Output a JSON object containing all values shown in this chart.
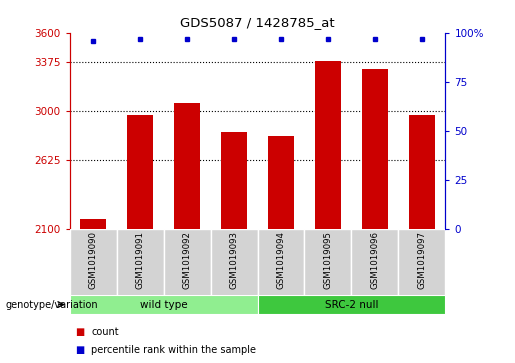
{
  "title": "GDS5087 / 1428785_at",
  "samples": [
    "GSM1019090",
    "GSM1019091",
    "GSM1019092",
    "GSM1019093",
    "GSM1019094",
    "GSM1019095",
    "GSM1019096",
    "GSM1019097"
  ],
  "counts": [
    2175,
    2970,
    3060,
    2840,
    2810,
    3380,
    3320,
    2970
  ],
  "percentiles": [
    96,
    97,
    97,
    97,
    97,
    97,
    97,
    97
  ],
  "bar_color": "#cc0000",
  "dot_color": "#0000cc",
  "ylim_left": [
    2100,
    3600
  ],
  "ylim_right": [
    0,
    100
  ],
  "yticks_left": [
    2100,
    2625,
    3000,
    3375,
    3600
  ],
  "yticks_right": [
    0,
    25,
    50,
    75,
    100
  ],
  "grid_values": [
    2625,
    3000,
    3375
  ],
  "genotype_label": "genotype/variation",
  "wild_type_label": "wild type",
  "src_null_label": "SRC-2 null",
  "count_legend": "count",
  "pct_legend": "percentile rank within the sample",
  "wild_type_color": "#90ee90",
  "src_null_color": "#3ec83e",
  "cell_bg": "#d3d3d3",
  "bar_width": 0.55,
  "n_wild": 4,
  "n_src": 4
}
